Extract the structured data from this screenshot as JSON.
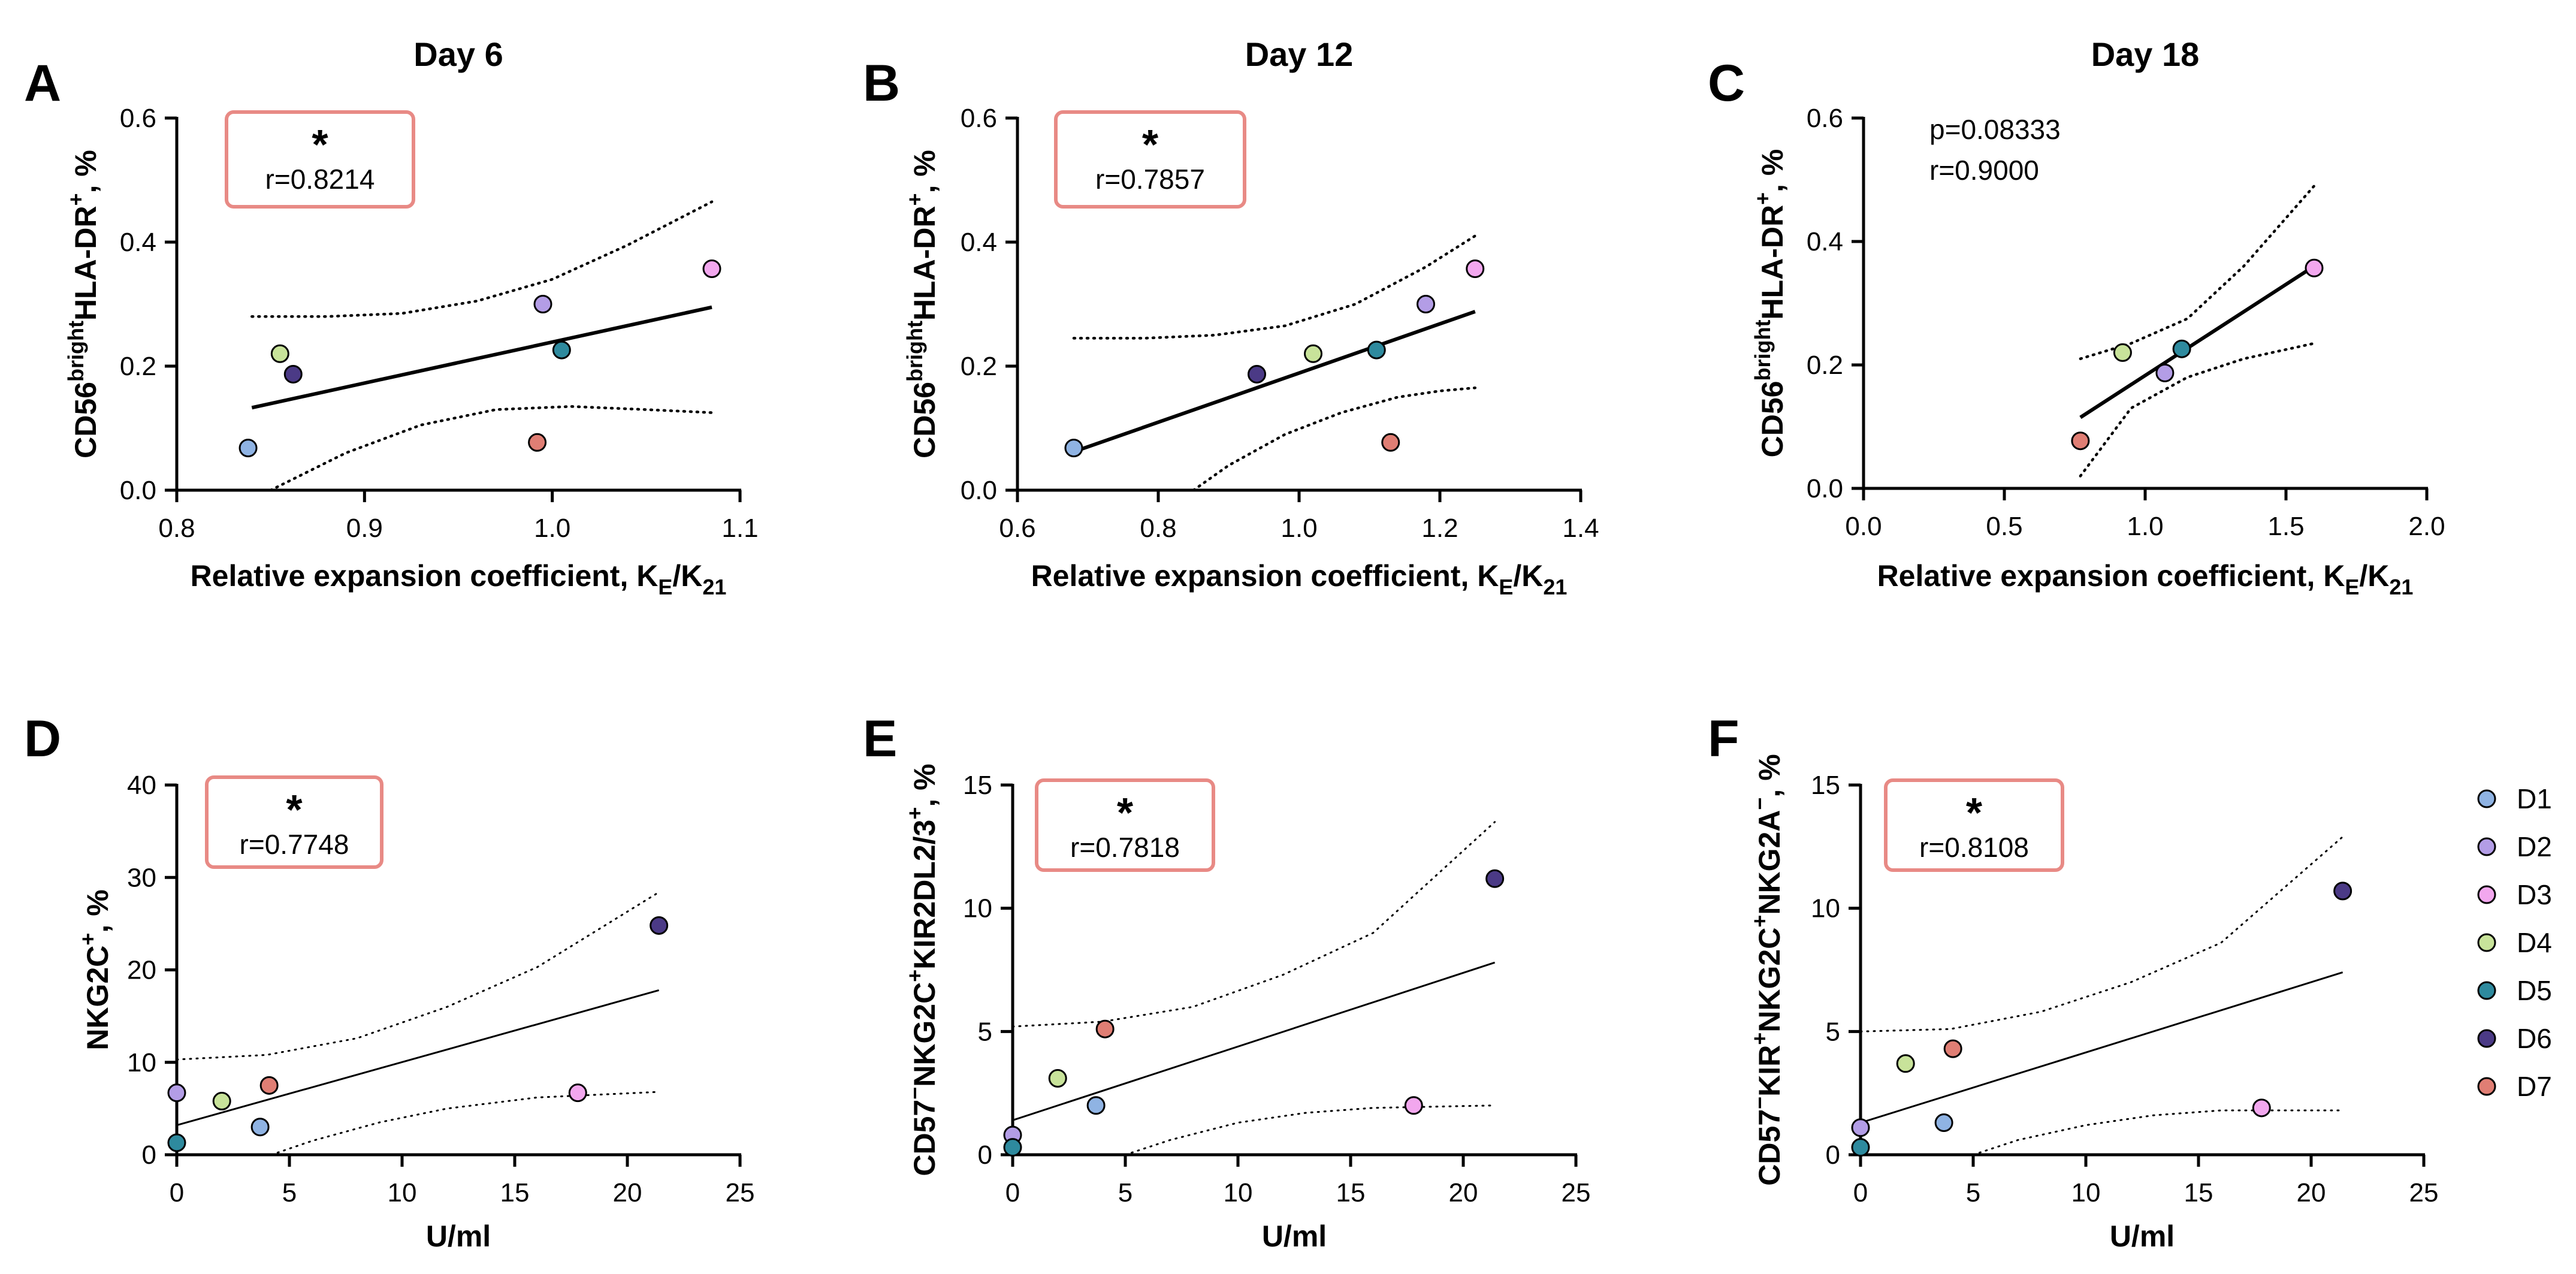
{
  "colors": {
    "D1": "#8FB3E3",
    "D2": "#B39DE6",
    "D3": "#F2A7EE",
    "D4": "#C8E39A",
    "D5": "#2E8A9E",
    "D6": "#4B3A86",
    "D7": "#E07E74",
    "annotation_box": "#E88A85",
    "axis": "#000000"
  },
  "legend": {
    "position": "right",
    "entries": [
      "D1",
      "D2",
      "D3",
      "D4",
      "D5",
      "D6",
      "D7"
    ]
  },
  "chart_data": [
    {
      "panel": "A",
      "type": "scatter",
      "title": "Day 6",
      "xlabel": "Relative expansion coefficient, KE/K21",
      "ylabel": "CD56brightHLA-DR+, %",
      "xlim": [
        0.8,
        1.1
      ],
      "ylim": [
        0.0,
        0.6
      ],
      "xticks": [
        "0.8",
        "0.9",
        "1.0",
        "1.1"
      ],
      "yticks": [
        "0.0",
        "0.2",
        "0.4",
        "0.6"
      ],
      "annotation": {
        "boxed": true,
        "star": "*",
        "lines": [
          "r=0.8214"
        ]
      },
      "points": [
        {
          "donor": "D1",
          "x": 0.838,
          "y": 0.068
        },
        {
          "donor": "D2",
          "x": 0.995,
          "y": 0.3
        },
        {
          "donor": "D3",
          "x": 1.085,
          "y": 0.357
        },
        {
          "donor": "D4",
          "x": 0.855,
          "y": 0.22
        },
        {
          "donor": "D5",
          "x": 1.005,
          "y": 0.226
        },
        {
          "donor": "D6",
          "x": 0.862,
          "y": 0.187
        },
        {
          "donor": "D7",
          "x": 0.992,
          "y": 0.077
        }
      ],
      "fit": {
        "x": [
          0.84,
          1.085
        ],
        "y": [
          0.133,
          0.295
        ]
      },
      "ci_upper": {
        "x": [
          0.84,
          0.88,
          0.92,
          0.96,
          1.0,
          1.04,
          1.085
        ],
        "y": [
          0.28,
          0.28,
          0.285,
          0.305,
          0.34,
          0.395,
          0.465
        ]
      },
      "ci_lower": {
        "x": [
          0.85,
          0.89,
          0.93,
          0.97,
          1.01,
          1.05,
          1.085
        ],
        "y": [
          0.0,
          0.06,
          0.105,
          0.13,
          0.135,
          0.13,
          0.125
        ]
      },
      "fit_style": "thick"
    },
    {
      "panel": "B",
      "type": "scatter",
      "title": "Day 12",
      "xlabel": "Relative expansion coefficient, KE/K21",
      "ylabel": "CD56brightHLA-DR+, %",
      "xlim": [
        0.6,
        1.4
      ],
      "ylim": [
        0.0,
        0.6
      ],
      "xticks": [
        "0.6",
        "0.8",
        "1.0",
        "1.2",
        "1.4"
      ],
      "yticks": [
        "0.0",
        "0.2",
        "0.4",
        "0.6"
      ],
      "annotation": {
        "boxed": true,
        "star": "*",
        "lines": [
          "r=0.7857"
        ]
      },
      "points": [
        {
          "donor": "D1",
          "x": 0.68,
          "y": 0.068
        },
        {
          "donor": "D2",
          "x": 1.18,
          "y": 0.3
        },
        {
          "donor": "D3",
          "x": 1.25,
          "y": 0.357
        },
        {
          "donor": "D4",
          "x": 1.02,
          "y": 0.22
        },
        {
          "donor": "D5",
          "x": 1.11,
          "y": 0.226
        },
        {
          "donor": "D6",
          "x": 0.94,
          "y": 0.187
        },
        {
          "donor": "D7",
          "x": 1.13,
          "y": 0.077
        }
      ],
      "fit": {
        "x": [
          0.68,
          1.25
        ],
        "y": [
          0.062,
          0.288
        ]
      },
      "ci_upper": {
        "x": [
          0.68,
          0.78,
          0.88,
          0.98,
          1.08,
          1.18,
          1.25
        ],
        "y": [
          0.245,
          0.245,
          0.25,
          0.265,
          0.3,
          0.36,
          0.41
        ]
      },
      "ci_lower": {
        "x": [
          0.85,
          0.9,
          0.98,
          1.06,
          1.14,
          1.2,
          1.25
        ],
        "y": [
          0.0,
          0.04,
          0.09,
          0.125,
          0.15,
          0.16,
          0.165
        ]
      },
      "fit_style": "thick"
    },
    {
      "panel": "C",
      "type": "scatter",
      "title": "Day 18",
      "xlabel": "Relative expansion coefficient, KE/K21",
      "ylabel": "CD56brightHLA-DR+, %",
      "xlim": [
        0.0,
        2.0
      ],
      "ylim": [
        0.0,
        0.6
      ],
      "xticks": [
        "0.0",
        "0.5",
        "1.0",
        "1.5",
        "2.0"
      ],
      "yticks": [
        "0.0",
        "0.2",
        "0.4",
        "0.6"
      ],
      "annotation": {
        "boxed": false,
        "star": "",
        "lines": [
          "p=0.08333",
          "r=0.9000"
        ]
      },
      "points": [
        {
          "donor": "D2",
          "x": 1.07,
          "y": 0.187
        },
        {
          "donor": "D3",
          "x": 1.6,
          "y": 0.357
        },
        {
          "donor": "D4",
          "x": 0.92,
          "y": 0.22
        },
        {
          "donor": "D5",
          "x": 1.13,
          "y": 0.226
        },
        {
          "donor": "D7",
          "x": 0.77,
          "y": 0.077
        }
      ],
      "fit": {
        "x": [
          0.77,
          1.6
        ],
        "y": [
          0.115,
          0.36
        ]
      },
      "ci_upper": {
        "x": [
          0.77,
          0.95,
          1.15,
          1.35,
          1.6
        ],
        "y": [
          0.21,
          0.235,
          0.275,
          0.36,
          0.49
        ]
      },
      "ci_lower": {
        "x": [
          0.77,
          0.95,
          1.15,
          1.35,
          1.6
        ],
        "y": [
          0.02,
          0.13,
          0.18,
          0.21,
          0.235
        ]
      },
      "fit_style": "thick"
    },
    {
      "panel": "D",
      "type": "scatter",
      "title": "",
      "xlabel": "U/ml",
      "ylabel": "NKG2C+, %",
      "xlim": [
        0,
        25
      ],
      "ylim": [
        0,
        40
      ],
      "xticks": [
        "0",
        "5",
        "10",
        "15",
        "20",
        "25"
      ],
      "yticks": [
        "0",
        "10",
        "20",
        "30",
        "40"
      ],
      "annotation": {
        "boxed": true,
        "star": "*",
        "lines": [
          "r=0.7748"
        ]
      },
      "points": [
        {
          "donor": "D1",
          "x": 3.7,
          "y": 3.0
        },
        {
          "donor": "D2",
          "x": 0.0,
          "y": 6.7
        },
        {
          "donor": "D3",
          "x": 17.8,
          "y": 6.7
        },
        {
          "donor": "D4",
          "x": 2.0,
          "y": 5.8
        },
        {
          "donor": "D5",
          "x": 0.0,
          "y": 1.3
        },
        {
          "donor": "D6",
          "x": 21.4,
          "y": 24.8
        },
        {
          "donor": "D7",
          "x": 4.1,
          "y": 7.5
        }
      ],
      "fit": {
        "x": [
          0,
          21.4
        ],
        "y": [
          3.2,
          17.8
        ]
      },
      "ci_upper": {
        "x": [
          0,
          4,
          8,
          12,
          16,
          21.4
        ],
        "y": [
          10.3,
          10.8,
          12.6,
          16.0,
          20.3,
          28.4
        ]
      },
      "ci_lower": {
        "x": [
          4.2,
          6,
          9,
          12,
          16,
          21.4
        ],
        "y": [
          0,
          1.5,
          3.5,
          5.0,
          6.2,
          6.8
        ]
      },
      "fit_style": "thin"
    },
    {
      "panel": "E",
      "type": "scatter",
      "title": "",
      "xlabel": "U/ml",
      "ylabel": "CD57−NKG2C+KIR2DL2/3+, %",
      "xlim": [
        0,
        25
      ],
      "ylim": [
        0,
        15
      ],
      "xticks": [
        "0",
        "5",
        "10",
        "15",
        "20",
        "25"
      ],
      "yticks": [
        "0",
        "5",
        "10",
        "15"
      ],
      "annotation": {
        "boxed": true,
        "star": "*",
        "lines": [
          "r=0.7818"
        ]
      },
      "points": [
        {
          "donor": "D1",
          "x": 3.7,
          "y": 2.0
        },
        {
          "donor": "D2",
          "x": 0.0,
          "y": 0.8
        },
        {
          "donor": "D3",
          "x": 17.8,
          "y": 2.0
        },
        {
          "donor": "D4",
          "x": 2.0,
          "y": 3.1
        },
        {
          "donor": "D5",
          "x": 0.0,
          "y": 0.3
        },
        {
          "donor": "D6",
          "x": 21.4,
          "y": 11.2
        },
        {
          "donor": "D7",
          "x": 4.1,
          "y": 5.1
        }
      ],
      "fit": {
        "x": [
          0,
          21.4
        ],
        "y": [
          1.4,
          7.8
        ]
      },
      "ci_upper": {
        "x": [
          0,
          4,
          8,
          12,
          16,
          21.4
        ],
        "y": [
          5.2,
          5.4,
          6.0,
          7.3,
          9.0,
          13.5
        ]
      },
      "ci_lower": {
        "x": [
          5.0,
          7,
          10,
          13,
          16,
          21.4
        ],
        "y": [
          0,
          0.6,
          1.3,
          1.7,
          1.9,
          2.0
        ]
      },
      "fit_style": "thin"
    },
    {
      "panel": "F",
      "type": "scatter",
      "title": "",
      "xlabel": "U/ml",
      "ylabel": "CD57−KIR+NKG2C+NKG2A−, %",
      "xlim": [
        0,
        25
      ],
      "ylim": [
        0,
        15
      ],
      "xticks": [
        "0",
        "5",
        "10",
        "15",
        "20",
        "25"
      ],
      "yticks": [
        "0",
        "5",
        "10",
        "15"
      ],
      "annotation": {
        "boxed": true,
        "star": "*",
        "lines": [
          "r=0.8108"
        ]
      },
      "points": [
        {
          "donor": "D1",
          "x": 3.7,
          "y": 1.3
        },
        {
          "donor": "D2",
          "x": 0.0,
          "y": 1.1
        },
        {
          "donor": "D3",
          "x": 17.8,
          "y": 1.9
        },
        {
          "donor": "D4",
          "x": 2.0,
          "y": 3.7
        },
        {
          "donor": "D5",
          "x": 0.0,
          "y": 0.3
        },
        {
          "donor": "D6",
          "x": 21.4,
          "y": 10.7
        },
        {
          "donor": "D7",
          "x": 4.1,
          "y": 4.3
        }
      ],
      "fit": {
        "x": [
          0,
          21.4
        ],
        "y": [
          1.3,
          7.4
        ]
      },
      "ci_upper": {
        "x": [
          0,
          4,
          8,
          12,
          16,
          21.4
        ],
        "y": [
          5.0,
          5.1,
          5.8,
          7.0,
          8.6,
          12.9
        ]
      },
      "ci_lower": {
        "x": [
          5.0,
          7,
          10,
          13,
          16,
          21.4
        ],
        "y": [
          0,
          0.6,
          1.2,
          1.6,
          1.8,
          1.8
        ]
      },
      "fit_style": "thin"
    }
  ]
}
